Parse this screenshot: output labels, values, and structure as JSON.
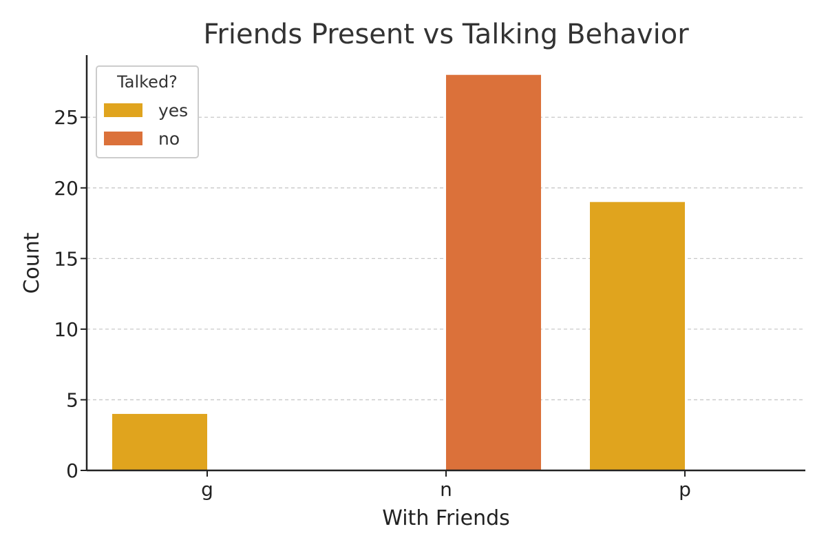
{
  "chart_data": {
    "type": "bar",
    "title": "Friends Present vs Talking Behavior",
    "xlabel": "With Friends",
    "ylabel": "Count",
    "categories": [
      "g",
      "n",
      "p"
    ],
    "series": [
      {
        "name": "yes",
        "values": [
          4,
          0,
          19
        ],
        "color": "#E0A41E"
      },
      {
        "name": "no",
        "values": [
          0,
          28,
          0
        ],
        "color": "#DB713A"
      }
    ],
    "ylim": [
      0,
      29.4
    ],
    "yticks": [
      0,
      5,
      10,
      15,
      20,
      25
    ],
    "grid": "horizontal-dashed",
    "legend": {
      "title": "Talked?",
      "position": "top-left"
    }
  }
}
